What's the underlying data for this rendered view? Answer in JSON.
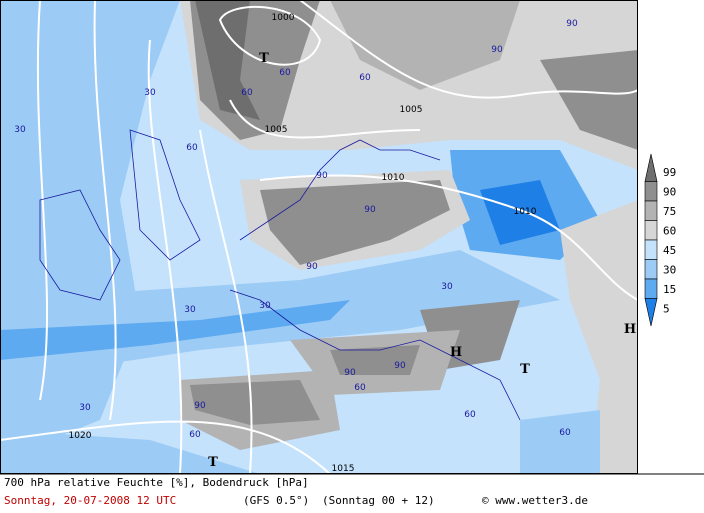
{
  "legend": {
    "items": [
      {
        "label": "99",
        "color": "#6e6e6e"
      },
      {
        "label": "90",
        "color": "#8f8f8f"
      },
      {
        "label": "75",
        "color": "#b3b3b3"
      },
      {
        "label": "60",
        "color": "#d6d6d6"
      },
      {
        "label": "45",
        "color": "#c4e2fc"
      },
      {
        "label": "30",
        "color": "#9ccbf5"
      },
      {
        "label": "15",
        "color": "#5eaaf0"
      },
      {
        "label": "5",
        "color": "#1e7fe6"
      }
    ]
  },
  "map_labels": [
    "1000",
    "T",
    "60",
    "60",
    "1005",
    "1005",
    "90",
    "90",
    "60",
    "1010",
    "1010",
    "90",
    "90",
    "90",
    "30",
    "30",
    "30",
    "60",
    "30",
    "30",
    "H",
    "T",
    "H",
    "90",
    "90",
    "90",
    "60",
    "60",
    "1020",
    "T",
    "1015",
    "30",
    "60",
    "60"
  ],
  "footer": {
    "description": "700 hPa relative Feuchte [%], Bodendruck [hPa]",
    "date": "Sonntag, 20-07-2008  12 UTC",
    "model": "(GFS 0.5°)",
    "run": "(Sonntag 00 + 12)",
    "credit": "© www.wetter3.de"
  }
}
